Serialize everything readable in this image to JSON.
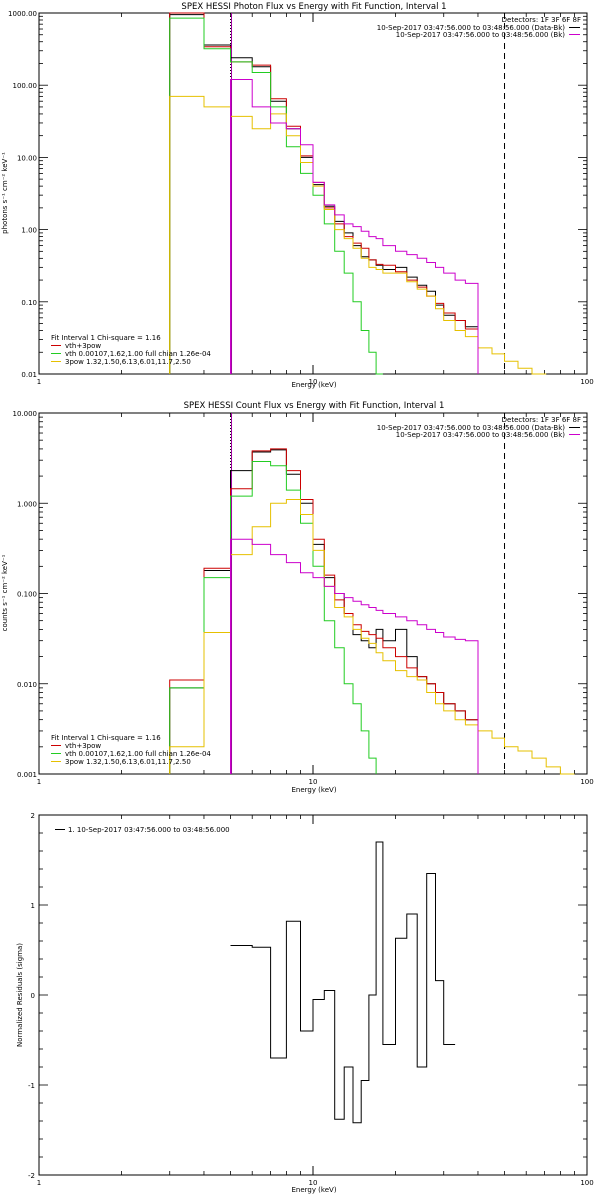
{
  "chart_data": [
    {
      "type": "line",
      "title": "SPEX HESSI Photon Flux vs Energy with Fit Function, Interval 1",
      "xlabel": "Energy (keV)",
      "ylabel": "photons s⁻¹ cm⁻² keV⁻¹",
      "xscale": "log",
      "yscale": "log",
      "xlim": [
        1,
        100
      ],
      "ylim": [
        0.01,
        1000
      ],
      "xticks": [
        "1",
        "10",
        "100"
      ],
      "yticks": [
        "1000.00",
        "100.00",
        "10.00",
        "1.00",
        "0.10",
        "0.01"
      ],
      "vlines": [
        {
          "x": 5,
          "style": "dotted",
          "color": "#000000"
        },
        {
          "x": 5,
          "style": "solid",
          "color": "#a000a0"
        },
        {
          "x": 50,
          "style": "dashed",
          "color": "#000000"
        }
      ],
      "edges": [
        3,
        4,
        5,
        6,
        7,
        8,
        9,
        10,
        11,
        12,
        13,
        14,
        15,
        16,
        17,
        18,
        20,
        22,
        24,
        26,
        28,
        30,
        33,
        36,
        40,
        45,
        50,
        56,
        63,
        71,
        80
      ],
      "series": [
        {
          "color": "#000000",
          "values": [
            950,
            360,
            240,
            180,
            60,
            25,
            10,
            4.2,
            2.1,
            1.3,
            0.9,
            0.6,
            0.42,
            0.38,
            0.32,
            0.28,
            0.3,
            0.22,
            0.17,
            0.14,
            0.09,
            0.065,
            0.055,
            0.045,
            null,
            null,
            null,
            null,
            null,
            null
          ]
        },
        {
          "color": "#cc0000",
          "values": [
            1000,
            340,
            210,
            190,
            65,
            27,
            10.5,
            4.5,
            2.0,
            1.2,
            0.8,
            0.65,
            0.55,
            0.38,
            0.33,
            0.32,
            0.26,
            0.2,
            0.16,
            0.12,
            0.095,
            0.07,
            0.055,
            0.042,
            null,
            null,
            null,
            null,
            null,
            null
          ]
        },
        {
          "color": "#22cc22",
          "values": [
            850,
            320,
            210,
            150,
            50,
            14,
            6,
            3,
            1.2,
            0.5,
            0.25,
            0.1,
            0.04,
            0.02,
            0.01,
            null,
            null,
            null,
            null,
            null,
            null,
            null,
            null,
            null,
            null,
            null,
            null,
            null,
            null,
            null
          ]
        },
        {
          "color": "#e6c000",
          "values": [
            70,
            50,
            37,
            25,
            40,
            20,
            8.5,
            4,
            1.9,
            1.0,
            0.75,
            0.55,
            0.4,
            0.3,
            0.28,
            0.25,
            0.25,
            0.19,
            0.15,
            0.12,
            0.08,
            0.055,
            0.04,
            0.033,
            0.023,
            0.019,
            0.015,
            0.012,
            0.01,
            null
          ]
        },
        {
          "color": "#cc00cc",
          "values": [
            null,
            null,
            120,
            50,
            30,
            25,
            15,
            4.5,
            2.2,
            1.6,
            1.2,
            1.1,
            0.95,
            0.8,
            0.75,
            0.6,
            0.5,
            0.45,
            0.4,
            0.35,
            0.3,
            0.25,
            0.2,
            0.18,
            null,
            null,
            null,
            null,
            null,
            null
          ]
        }
      ],
      "legend": {
        "header_left": "Fit Interval 1",
        "header_right": "Chi-square = 1.16",
        "items": [
          {
            "label": "vth+3pow",
            "color": "#cc0000"
          },
          {
            "label": "vth 0.00107,1.62,1.00  full chian 1.26e-04",
            "color": "#22cc22"
          },
          {
            "label": "3pow 1.32,1.50,6.13,6.01,11.7,2.50",
            "color": "#e6c000"
          }
        ]
      },
      "info": {
        "detectors": "Detectors: 1F 3F 6F 8F",
        "lines": [
          {
            "text": "10-Sep-2017 03:47:56.000 to 03:48:56.000 (Data-Bk)",
            "color": "#000000"
          },
          {
            "text": "10-Sep-2017 03:47:56.000 to 03:48:56.000 (Bk)",
            "color": "#cc00cc"
          }
        ]
      }
    },
    {
      "type": "line",
      "title": "SPEX HESSI Count Flux vs Energy with Fit Function, Interval 1",
      "xlabel": "Energy (keV)",
      "ylabel": "counts s⁻¹ cm⁻² keV⁻¹",
      "xscale": "log",
      "yscale": "log",
      "xlim": [
        1,
        100
      ],
      "ylim": [
        0.001,
        10
      ],
      "xticks": [
        "1",
        "10",
        "100"
      ],
      "yticks": [
        "10.000",
        "1.000",
        "0.100",
        "0.010",
        "0.001"
      ],
      "vlines": [
        {
          "x": 5,
          "style": "dotted",
          "color": "#000000"
        },
        {
          "x": 5,
          "style": "solid",
          "color": "#a000a0"
        },
        {
          "x": 50,
          "style": "dashed",
          "color": "#000000"
        }
      ],
      "edges": [
        3,
        4,
        5,
        6,
        7,
        8,
        9,
        10,
        11,
        12,
        13,
        14,
        15,
        16,
        17,
        18,
        20,
        22,
        24,
        26,
        28,
        30,
        33,
        36,
        40,
        45,
        50,
        56,
        63,
        71,
        80,
        90,
        100
      ],
      "series": [
        {
          "color": "#000000",
          "values": [
            0.009,
            0.18,
            2.3,
            3.7,
            3.9,
            2.1,
            1.0,
            0.35,
            0.15,
            0.1,
            0.06,
            0.035,
            0.03,
            0.025,
            0.04,
            0.03,
            0.04,
            0.02,
            0.012,
            0.01,
            0.008,
            0.006,
            0.005,
            0.004,
            null,
            null,
            null,
            null,
            null,
            null,
            null,
            null
          ]
        },
        {
          "color": "#cc0000",
          "values": [
            0.011,
            0.19,
            1.45,
            3.8,
            4.0,
            2.3,
            1.1,
            0.4,
            0.16,
            0.085,
            0.06,
            0.045,
            0.038,
            0.035,
            0.032,
            0.025,
            0.02,
            0.015,
            0.012,
            0.01,
            0.008,
            0.006,
            0.005,
            0.004,
            null,
            null,
            null,
            null,
            null,
            null,
            null,
            null
          ]
        },
        {
          "color": "#22cc22",
          "values": [
            0.009,
            0.15,
            1.2,
            2.9,
            2.6,
            1.4,
            0.6,
            0.2,
            0.05,
            0.025,
            0.01,
            0.006,
            0.003,
            0.0015,
            null,
            null,
            null,
            null,
            null,
            null,
            null,
            null,
            null,
            null,
            null,
            null,
            null,
            null,
            null,
            null,
            null,
            null
          ]
        },
        {
          "color": "#e6c000",
          "values": [
            0.002,
            0.037,
            0.27,
            0.55,
            1.0,
            1.1,
            0.75,
            0.3,
            0.12,
            0.07,
            0.055,
            0.04,
            0.032,
            0.028,
            0.022,
            0.018,
            0.014,
            0.012,
            0.011,
            0.008,
            0.006,
            0.005,
            0.004,
            0.0035,
            0.003,
            0.0025,
            0.002,
            0.0018,
            0.0015,
            0.0012,
            0.001,
            null
          ]
        },
        {
          "color": "#cc00cc",
          "values": [
            null,
            null,
            0.4,
            0.35,
            0.27,
            0.22,
            0.17,
            0.15,
            0.12,
            0.1,
            0.09,
            0.082,
            0.075,
            0.07,
            0.065,
            0.06,
            0.055,
            0.05,
            0.045,
            0.04,
            0.037,
            0.033,
            0.031,
            0.03,
            null,
            null,
            null,
            null,
            null,
            null,
            null,
            null
          ]
        }
      ],
      "legend": {
        "header_left": "Fit Interval 1",
        "header_right": "Chi-square = 1.16",
        "items": [
          {
            "label": "vth+3pow",
            "color": "#cc0000"
          },
          {
            "label": "vth 0.00107,1.62,1.00  full chian 1.26e-04",
            "color": "#22cc22"
          },
          {
            "label": "3pow 1.32,1.50,6.13,6.01,11.7,2.50",
            "color": "#e6c000"
          }
        ]
      },
      "info": {
        "detectors": "Detectors: 1F 3F 6F 8F",
        "lines": [
          {
            "text": "10-Sep-2017 03:47:56.000 to 03:48:56.000 (Data-Bk)",
            "color": "#000000"
          },
          {
            "text": "10-Sep-2017 03:47:56.000 to 03:48:56.000 (Bk)",
            "color": "#cc00cc"
          }
        ]
      }
    },
    {
      "type": "line",
      "title": "",
      "xlabel": "Energy (keV)",
      "ylabel": "Normalized Residuals (sigma)",
      "xscale": "log",
      "yscale": "linear",
      "xlim": [
        1,
        100
      ],
      "ylim": [
        -2,
        2
      ],
      "xticks": [
        "1",
        "10",
        "100"
      ],
      "yticks": [
        "2",
        "1",
        "0",
        "-1",
        "-2"
      ],
      "edges": [
        5,
        6,
        7,
        8,
        9,
        10,
        11,
        12,
        13,
        14,
        15,
        16,
        17,
        18,
        20,
        22,
        24,
        26,
        28,
        30,
        33,
        36,
        40,
        45,
        50
      ],
      "series": [
        {
          "color": "#000000",
          "values": [
            0.55,
            0.53,
            -0.7,
            0.82,
            -0.4,
            -0.05,
            0.05,
            -1.38,
            -0.8,
            -1.42,
            -0.95,
            0.0,
            1.7,
            -0.55,
            0.63,
            0.9,
            -0.8,
            1.35,
            0.16,
            -0.55
          ]
        }
      ],
      "legend": {
        "items": [
          {
            "label": "1. 10-Sep-2017 03:47:56.000 to 03:48:56.000",
            "color": "#000000"
          }
        ]
      }
    }
  ]
}
